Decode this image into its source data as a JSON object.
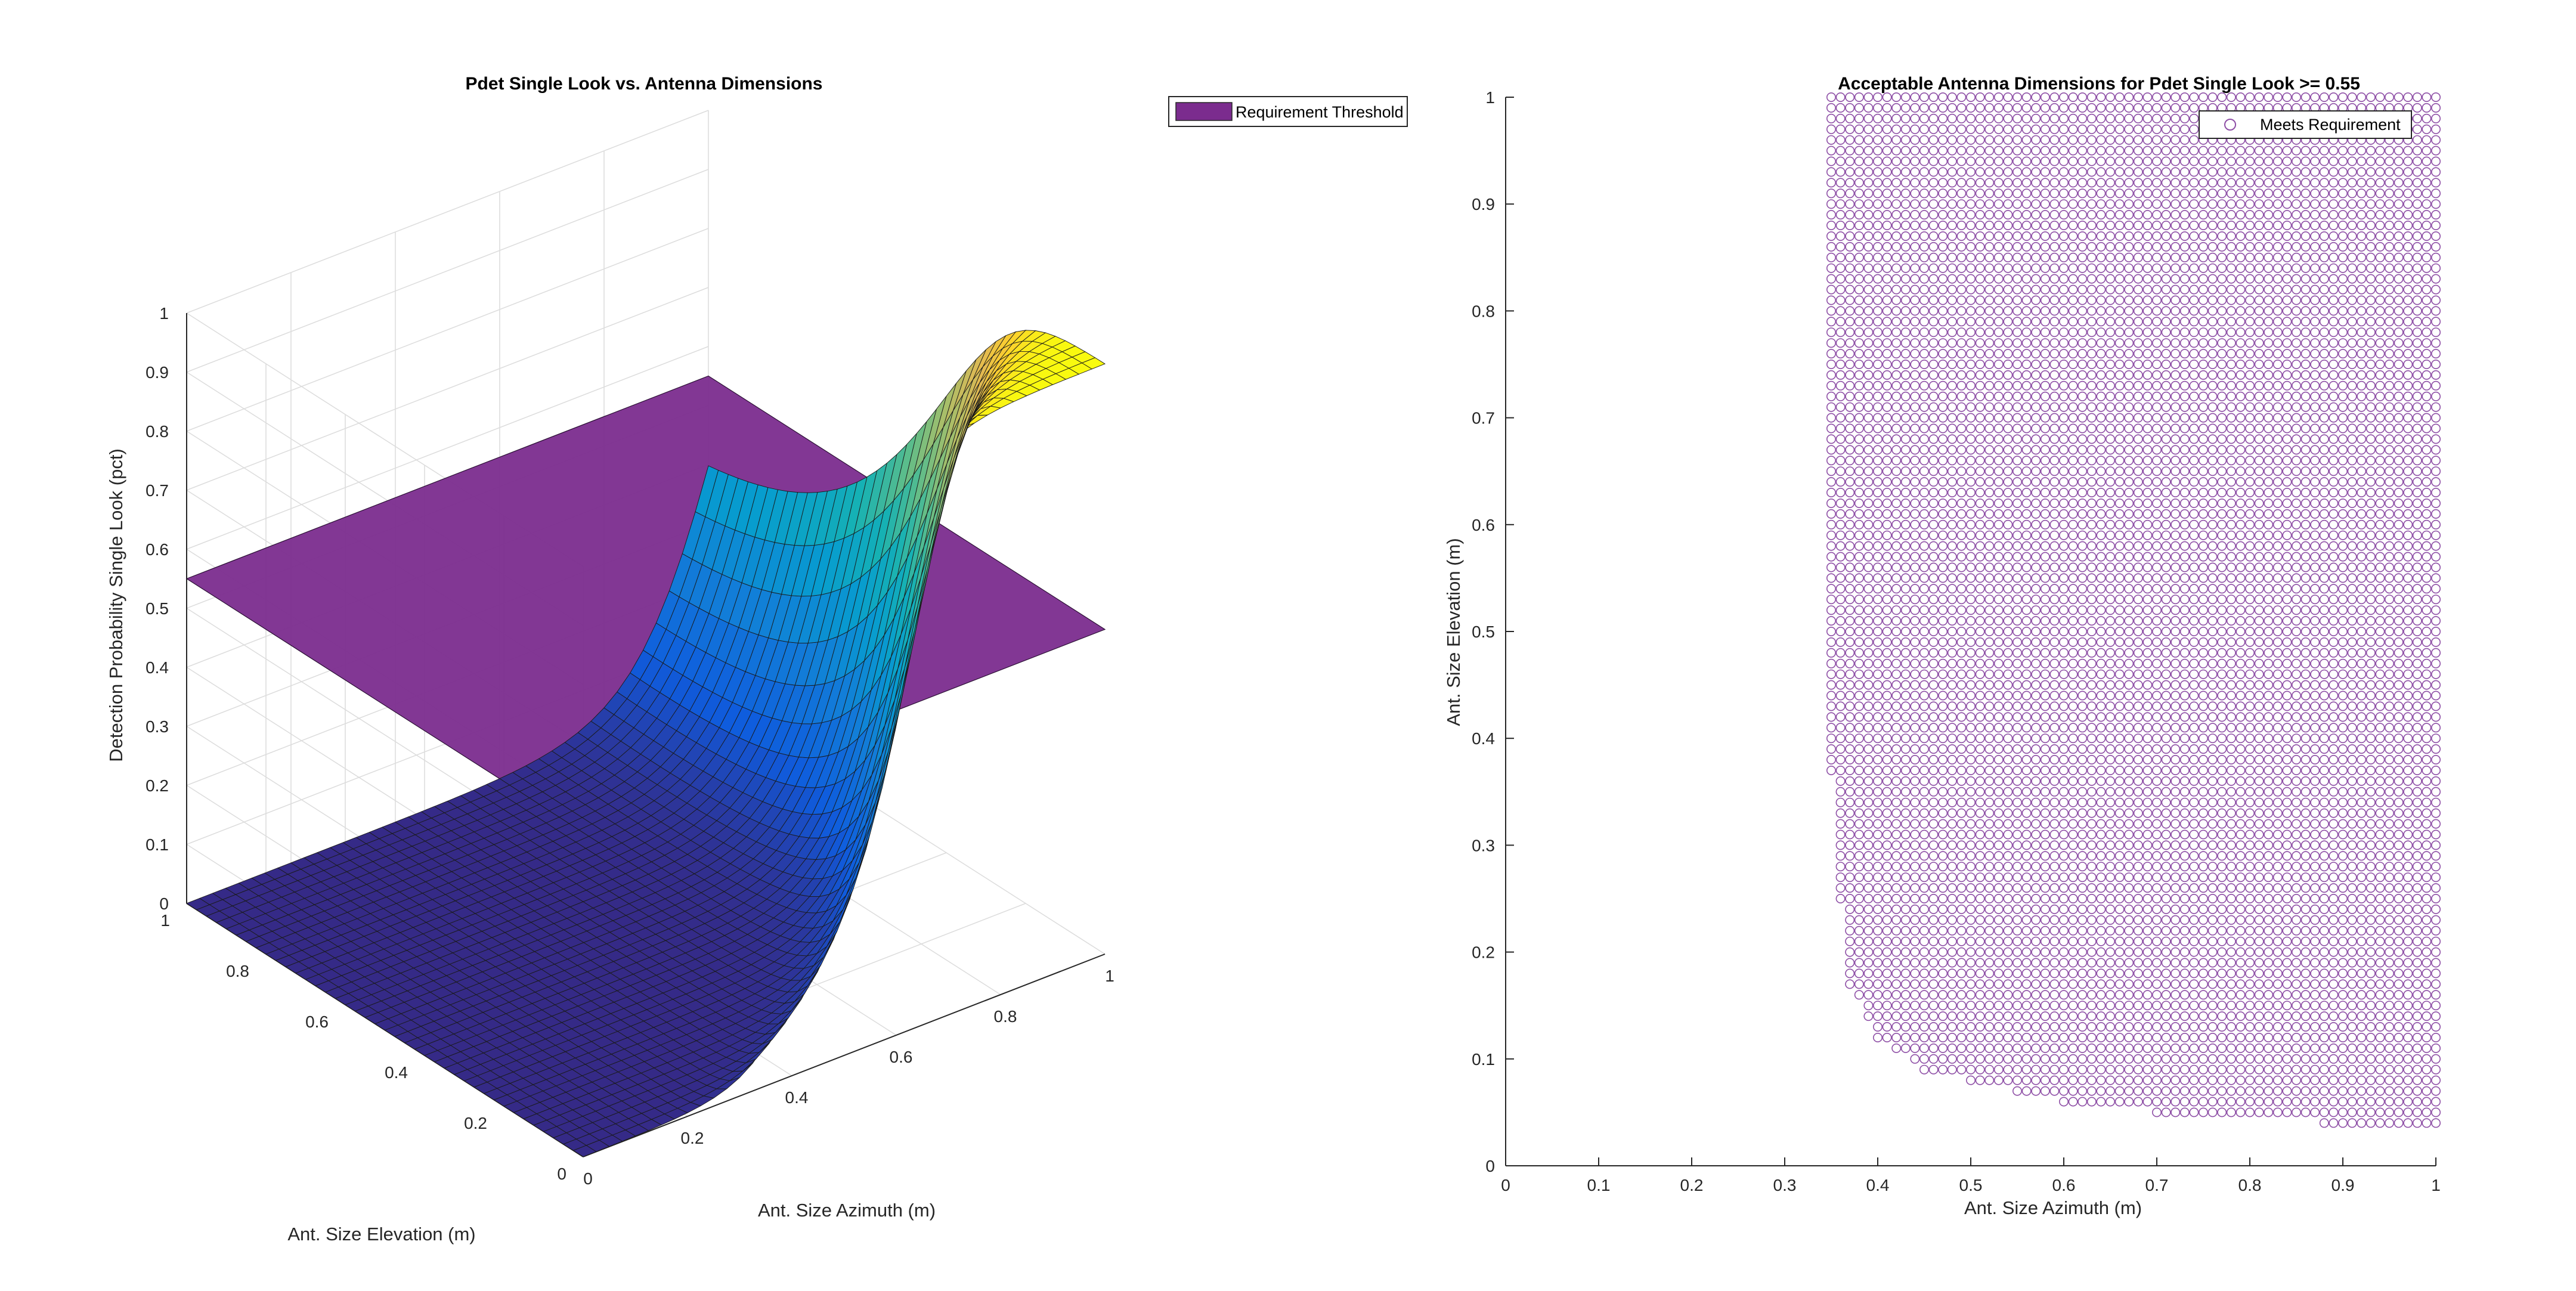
{
  "figure": {
    "left_panel": {
      "title": "Pdet Single Look vs. Antenna Dimensions",
      "xlabel": "Ant. Size Azimuth (m)",
      "ylabel": "Ant. Size Elevation (m)",
      "zlabel": "Detection Probability  Single Look (pct)",
      "legend": {
        "label": "Requirement Threshold",
        "color": "#7B2C8E"
      },
      "x_ticks": [
        "0",
        "0.2",
        "0.4",
        "0.6",
        "0.8",
        "1"
      ],
      "y_ticks": [
        "0",
        "0.2",
        "0.4",
        "0.6",
        "0.8",
        "1"
      ],
      "z_ticks": [
        "0",
        "0.1",
        "0.2",
        "0.3",
        "0.4",
        "0.5",
        "0.6",
        "0.7",
        "0.8",
        "0.9",
        "1"
      ]
    },
    "right_panel": {
      "title": "Acceptable Antenna Dimensions for Pdet Single Look >= 0.55",
      "xlabel": "Ant. Size Azimuth (m)",
      "ylabel": "Ant. Size Elevation (m)",
      "legend": {
        "label": "Meets Requirement",
        "marker_color": "#8E4FA6"
      },
      "x_ticks": [
        "0",
        "0.1",
        "0.2",
        "0.3",
        "0.4",
        "0.5",
        "0.6",
        "0.7",
        "0.8",
        "0.9",
        "1"
      ],
      "y_ticks": [
        "0",
        "0.1",
        "0.2",
        "0.3",
        "0.4",
        "0.5",
        "0.6",
        "0.7",
        "0.8",
        "0.9",
        "1"
      ]
    }
  },
  "chart_data": [
    {
      "type": "surface",
      "title": "Pdet Single Look vs. Antenna Dimensions",
      "xlabel": "Ant. Size Azimuth (m)",
      "ylabel": "Ant. Size Elevation (m)",
      "zlabel": "Detection Probability  Single Look (pct)",
      "xlim": [
        0,
        1
      ],
      "ylim": [
        0,
        1
      ],
      "zlim": [
        0,
        1
      ],
      "colormap": "parula",
      "series": [
        {
          "name": "Requirement Threshold",
          "kind": "plane",
          "z": 0.55,
          "color": "#7B2C8E"
        }
      ],
      "surface_samples": {
        "x": [
          0,
          0.2,
          0.4,
          0.6,
          0.8,
          1.0
        ],
        "y": [
          0,
          0.2,
          0.4,
          0.6,
          0.8,
          1.0
        ],
        "z": [
          [
            0.0,
            0.0,
            0.0,
            0.01,
            0.04,
            0.25
          ],
          [
            0.0,
            0.0,
            0.01,
            0.06,
            0.42,
            0.92
          ],
          [
            0.0,
            0.0,
            0.04,
            0.35,
            0.93,
            0.99
          ],
          [
            0.0,
            0.01,
            0.12,
            0.7,
            0.98,
            1.0
          ],
          [
            0.0,
            0.02,
            0.22,
            0.84,
            0.99,
            1.0
          ],
          [
            0.0,
            0.03,
            0.3,
            0.88,
            1.0,
            1.0
          ]
        ]
      },
      "grid": true
    },
    {
      "type": "scatter",
      "title": "Acceptable Antenna Dimensions for Pdet Single Look >= 0.55",
      "xlabel": "Ant. Size Azimuth (m)",
      "ylabel": "Ant. Size Elevation (m)",
      "xlim": [
        0,
        1
      ],
      "ylim": [
        0,
        1
      ],
      "grid": false,
      "legend_position": "top-right",
      "series": [
        {
          "name": "Meets Requirement",
          "marker": "circle-open",
          "color": "#8E4FA6",
          "grid_step": 0.01,
          "region_boundary": [
            [
              0.35,
              1.0
            ],
            [
              0.35,
              0.37
            ],
            [
              0.36,
              0.25
            ],
            [
              0.37,
              0.17
            ],
            [
              0.4,
              0.12
            ],
            [
              0.45,
              0.09
            ],
            [
              0.5,
              0.08
            ],
            [
              0.55,
              0.07
            ],
            [
              0.6,
              0.06
            ],
            [
              0.7,
              0.05
            ],
            [
              0.88,
              0.04
            ],
            [
              1.0,
              0.04
            ]
          ]
        }
      ]
    }
  ]
}
